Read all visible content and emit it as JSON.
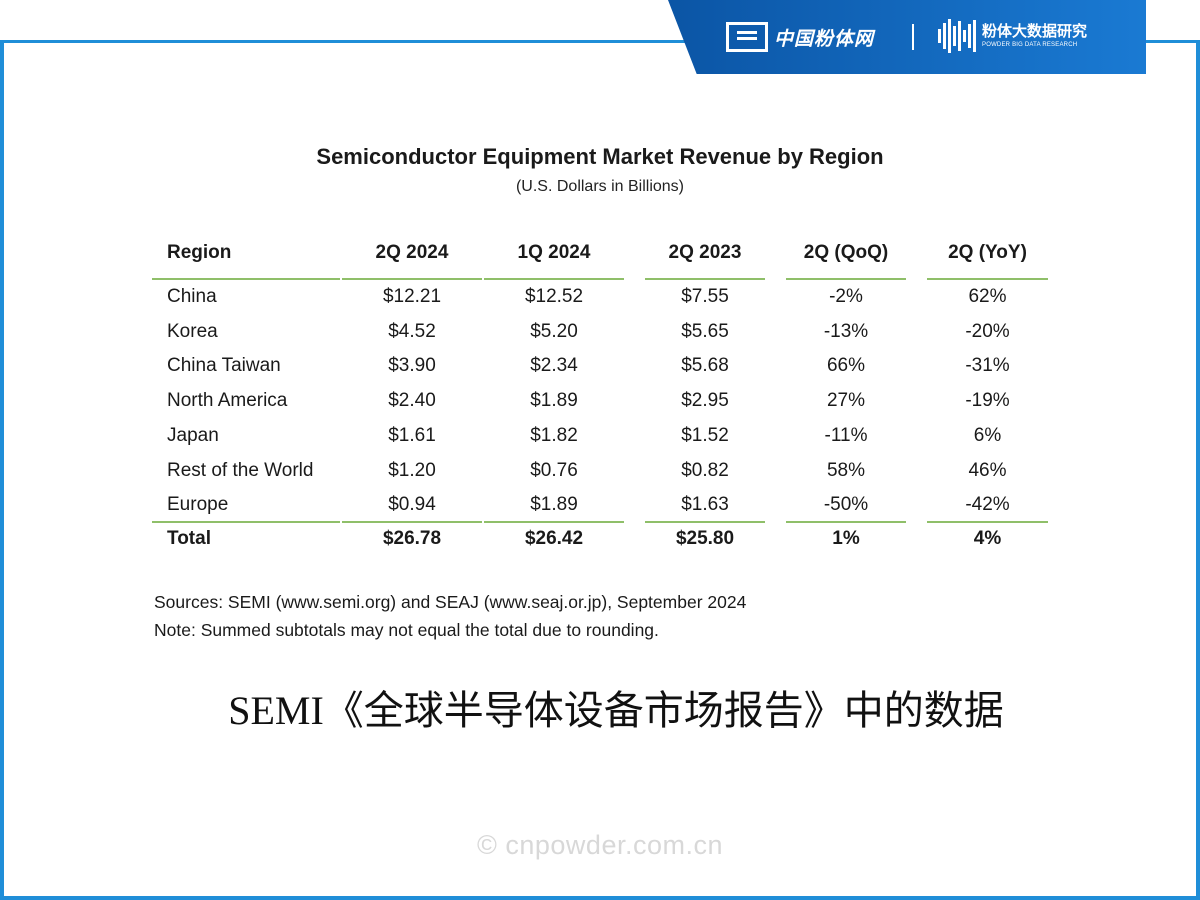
{
  "brand": {
    "left_name": "中国粉体网",
    "right_name": "粉体大数据研究",
    "right_sub": "POWDER BIG DATA RESEARCH",
    "accent": "#1f8ed8",
    "tab_color": "#0b55a5"
  },
  "table": {
    "title": "Semiconductor Equipment Market Revenue by Region",
    "subtitle": "(U.S. Dollars in Billions)",
    "headers": [
      "Region",
      "2Q 2024",
      "1Q 2024",
      "2Q 2023",
      "2Q (QoQ)",
      "2Q (YoY)"
    ],
    "rows": [
      [
        "China",
        "$12.21",
        "$12.52",
        "$7.55",
        "-2%",
        "62%"
      ],
      [
        "Korea",
        "$4.52",
        "$5.20",
        "$5.65",
        "-13%",
        "-20%"
      ],
      [
        "China Taiwan",
        "$3.90",
        "$2.34",
        "$5.68",
        "66%",
        "-31%"
      ],
      [
        "North America",
        "$2.40",
        "$1.89",
        "$2.95",
        "27%",
        "-19%"
      ],
      [
        "Japan",
        "$1.61",
        "$1.82",
        "$1.52",
        "-11%",
        "6%"
      ],
      [
        "Rest of the World",
        "$1.20",
        "$0.76",
        "$0.82",
        "58%",
        "46%"
      ],
      [
        "Europe",
        "$0.94",
        "$1.89",
        "$1.63",
        "-50%",
        "-42%"
      ]
    ],
    "total": [
      "Total",
      "$26.78",
      "$26.42",
      "$25.80",
      "1%",
      "4%"
    ],
    "rule_color": "#8fbf69"
  },
  "notes": {
    "sources": "Sources: SEMI (www.semi.org) and SEAJ (www.seaj.or.jp), September 2024",
    "note": "Note: Summed subtotals may not equal the total due to rounding."
  },
  "caption": "SEMI《全球半导体设备市场报告》中的数据",
  "watermark": "© cnpowder.com.cn"
}
